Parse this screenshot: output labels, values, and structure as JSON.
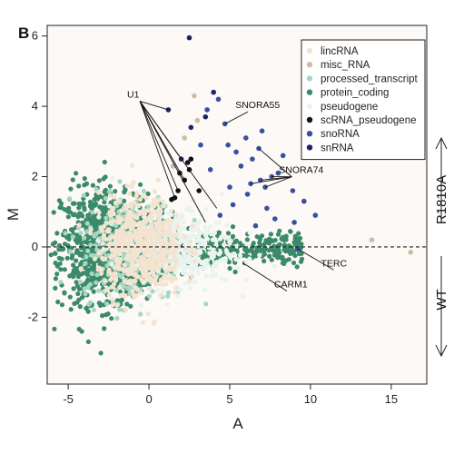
{
  "chart_data": {
    "type": "scatter",
    "panel_label": "B",
    "xlabel": "A",
    "ylabel": "M",
    "xlim": [
      -6.3,
      17.2
    ],
    "ylim": [
      -3.9,
      6.3
    ],
    "x_ticks": [
      -5,
      0,
      5,
      10,
      15
    ],
    "y_ticks": [
      -2,
      0,
      2,
      4,
      6
    ],
    "reference_line": {
      "y": 0,
      "style": "dashed"
    },
    "legend_position": "top-right",
    "series": [
      {
        "name": "lincRNA",
        "color": "#f4e3cf"
      },
      {
        "name": "misc_RNA",
        "color": "#c9bfa7"
      },
      {
        "name": "processed_transcript",
        "color": "#a4d8c4"
      },
      {
        "name": "protein_coding",
        "color": "#3b8a6a"
      },
      {
        "name": "pseudogene",
        "color": "#e9f3ef"
      },
      {
        "name": "scRNA_pseudogene",
        "color": "#111111"
      },
      {
        "name": "snoRNA",
        "color": "#3a4fa0"
      },
      {
        "name": "snRNA",
        "color": "#1c2466"
      }
    ],
    "annotations": [
      {
        "label": "U1",
        "x": -0.9,
        "y": 4.25,
        "targets": [
          [
            1.2,
            3.9
          ],
          [
            2.0,
            2.5
          ],
          [
            1.6,
            1.4
          ],
          [
            1.8,
            1.6
          ],
          [
            2.2,
            1.9
          ],
          [
            4.2,
            1.1
          ],
          [
            3.5,
            0.7
          ]
        ]
      },
      {
        "label": "SNORA55",
        "x": 5.8,
        "y": 3.95,
        "targets": [
          [
            4.7,
            3.5
          ]
        ]
      },
      {
        "label": "SNORA74",
        "x": 8.5,
        "y": 2.1,
        "targets": [
          [
            6.8,
            2.8
          ],
          [
            6.3,
            1.8
          ],
          [
            6.9,
            1.9
          ],
          [
            7.6,
            2.0
          ],
          [
            7.2,
            1.7
          ]
        ]
      },
      {
        "label": "TERC",
        "x": 11.1,
        "y": -0.55,
        "targets": [
          [
            9.2,
            -0.05
          ]
        ]
      },
      {
        "label": "CARM1",
        "x": 8.2,
        "y": -1.15,
        "targets": [
          [
            5.8,
            -0.45
          ]
        ]
      }
    ],
    "highlight_points": {
      "snRNA": [
        [
          2.5,
          5.95
        ],
        [
          4.0,
          4.4
        ],
        [
          1.2,
          3.9
        ],
        [
          2.0,
          2.5
        ],
        [
          2.6,
          3.4
        ],
        [
          3.5,
          3.7
        ]
      ],
      "snoRNA": [
        [
          4.7,
          3.5
        ],
        [
          6.8,
          2.8
        ],
        [
          6.3,
          1.8
        ],
        [
          6.9,
          1.9
        ],
        [
          7.6,
          2.0
        ],
        [
          7.2,
          1.7
        ],
        [
          9.2,
          -0.05
        ],
        [
          3.6,
          3.9
        ],
        [
          4.3,
          4.2
        ],
        [
          6.0,
          3.1
        ],
        [
          5.4,
          2.7
        ],
        [
          8.3,
          2.6
        ],
        [
          10.3,
          0.9
        ],
        [
          9.6,
          1.3
        ],
        [
          8.9,
          1.6
        ],
        [
          7.8,
          0.8
        ],
        [
          6.6,
          0.6
        ],
        [
          5.2,
          1.2
        ],
        [
          4.4,
          0.9
        ],
        [
          3.8,
          2.2
        ],
        [
          4.9,
          2.9
        ],
        [
          5.7,
          2.3
        ],
        [
          6.4,
          2.5
        ],
        [
          8.0,
          2.1
        ],
        [
          9.0,
          0.7
        ],
        [
          7.3,
          1.1
        ],
        [
          6.1,
          1.5
        ],
        [
          3.2,
          2.9
        ],
        [
          5.0,
          1.7
        ],
        [
          7.0,
          3.3
        ]
      ],
      "scRNA_pseudogene": [
        [
          1.6,
          1.4
        ],
        [
          1.8,
          1.6
        ],
        [
          2.2,
          1.9
        ],
        [
          2.4,
          2.4
        ],
        [
          2.6,
          2.5
        ],
        [
          1.4,
          1.35
        ],
        [
          1.9,
          2.1
        ],
        [
          3.1,
          1.6
        ],
        [
          2.5,
          2.2
        ]
      ],
      "misc_RNA": [
        [
          2.8,
          4.3
        ],
        [
          3.0,
          3.6
        ],
        [
          13.8,
          0.2
        ],
        [
          16.2,
          -0.15
        ],
        [
          2.2,
          3.1
        ],
        [
          1.5,
          2.3
        ]
      ]
    },
    "side_labels": {
      "top": "R1810A",
      "bottom": "WT"
    }
  }
}
